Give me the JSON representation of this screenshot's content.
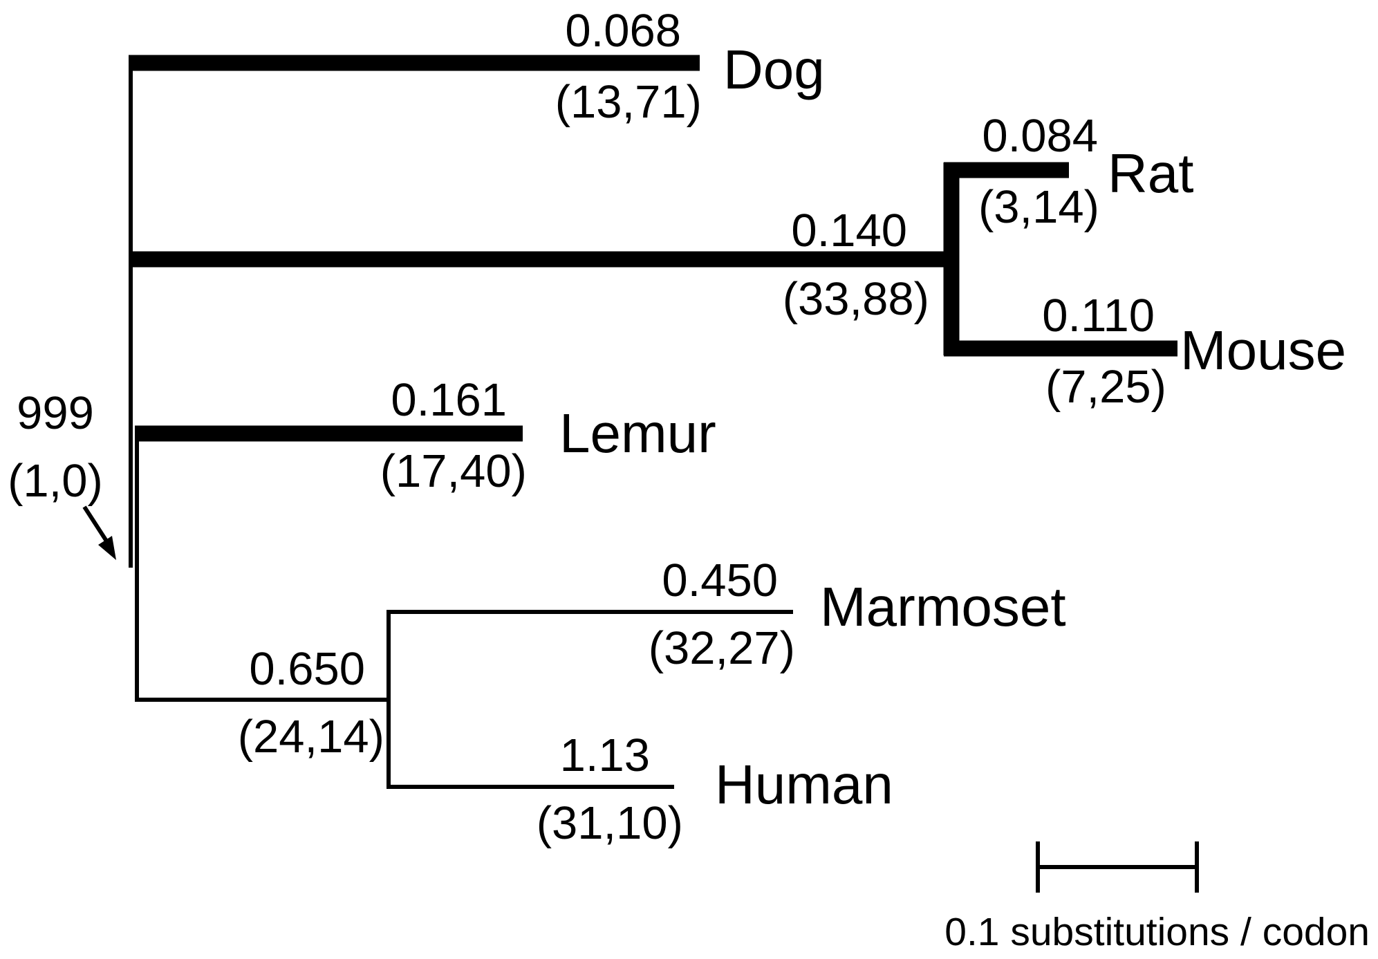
{
  "tree": {
    "taxa": {
      "dog": "Dog",
      "rat": "Rat",
      "mouse": "Mouse",
      "lemur": "Lemur",
      "marmoset": "Marmoset",
      "human": "Human"
    },
    "branches": {
      "dog": {
        "omega": "0.068",
        "counts": "(13,71)"
      },
      "rodent": {
        "omega": "0.140",
        "counts": "(33,88)"
      },
      "rat": {
        "omega": "0.084",
        "counts": "(3,14)"
      },
      "mouse": {
        "omega": "0.110",
        "counts": "(7,25)"
      },
      "lemur": {
        "omega": "0.161",
        "counts": "(17,40)"
      },
      "anthropoid": {
        "omega": "0.650",
        "counts": "(24,14)"
      },
      "marmoset": {
        "omega": "0.450",
        "counts": "(32,27)"
      },
      "human": {
        "omega": "1.13",
        "counts": "(31,10)"
      },
      "primate_stem": {
        "omega": "999",
        "counts": "(1,0)"
      }
    },
    "scale_bar_label": "0.1 substitutions / codon",
    "colors": {
      "line": "#000000",
      "background": "#ffffff"
    }
  }
}
